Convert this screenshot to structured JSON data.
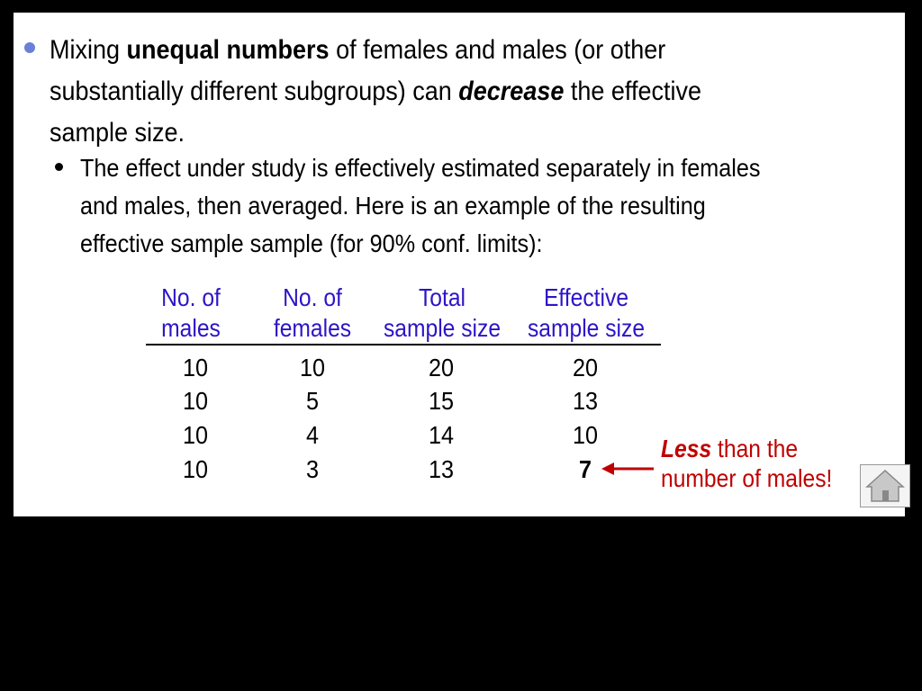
{
  "bullet1": {
    "line1_a": "Mixing ",
    "line1_b": "unequal numbers",
    "line1_c": " of females and males (or other",
    "line2_a": "substantially different subgroups) can ",
    "line2_b": "decrease",
    "line2_c": " the effective",
    "line3": "sample size."
  },
  "bullet2": {
    "line1": "The effect under study is effectively estimated separately in females",
    "line2": "and males, then averaged.  Here is an example of the resulting",
    "line3": "effective sample sample (for 90% conf. limits):"
  },
  "table": {
    "headers": [
      {
        "line1": "No. of",
        "line2": "males"
      },
      {
        "line1": "No. of",
        "line2": "females"
      },
      {
        "line1": "Total",
        "line2": "sample size"
      },
      {
        "line1": "Effective",
        "line2": "sample size"
      }
    ],
    "rows": [
      [
        "10",
        "10",
        "20",
        "20"
      ],
      [
        "10",
        "5",
        "15",
        "13"
      ],
      [
        "10",
        "4",
        "14",
        "10"
      ],
      [
        "10",
        "3",
        "13",
        "7"
      ]
    ]
  },
  "note": {
    "emph": "Less",
    "rest": " than the",
    "line2": "number of males!"
  },
  "colors": {
    "table_text": "#2d14c8",
    "note_text": "#c00000",
    "bullet1_dot": "#6a7fd8"
  },
  "icons": {
    "home": "home-icon",
    "arrow": "left-arrow-icon"
  }
}
